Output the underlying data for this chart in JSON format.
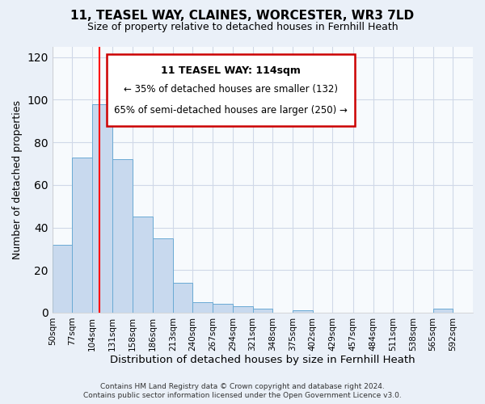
{
  "title": "11, TEASEL WAY, CLAINES, WORCESTER, WR3 7LD",
  "subtitle": "Size of property relative to detached houses in Fernhill Heath",
  "xlabel": "Distribution of detached houses by size in Fernhill Heath",
  "ylabel": "Number of detached properties",
  "bin_labels": [
    "50sqm",
    "77sqm",
    "104sqm",
    "131sqm",
    "158sqm",
    "186sqm",
    "213sqm",
    "240sqm",
    "267sqm",
    "294sqm",
    "321sqm",
    "348sqm",
    "375sqm",
    "402sqm",
    "429sqm",
    "457sqm",
    "484sqm",
    "511sqm",
    "538sqm",
    "565sqm",
    "592sqm"
  ],
  "bin_edges": [
    50,
    77,
    104,
    131,
    158,
    186,
    213,
    240,
    267,
    294,
    321,
    348,
    375,
    402,
    429,
    457,
    484,
    511,
    538,
    565,
    592
  ],
  "bar_heights": [
    32,
    73,
    98,
    72,
    45,
    35,
    14,
    5,
    4,
    3,
    2,
    0,
    1,
    0,
    0,
    0,
    0,
    0,
    0,
    2,
    0
  ],
  "bar_color": "#c8d9ee",
  "bar_edge_color": "#6aaad4",
  "red_line_x": 114,
  "ylim": [
    0,
    125
  ],
  "yticks": [
    0,
    20,
    40,
    60,
    80,
    100,
    120
  ],
  "annotation_title": "11 TEASEL WAY: 114sqm",
  "annotation_line1": "← 35% of detached houses are smaller (132)",
  "annotation_line2": "65% of semi-detached houses are larger (250) →",
  "annotation_box_color": "#ffffff",
  "annotation_box_edge_color": "#cc0000",
  "footer_line1": "Contains HM Land Registry data © Crown copyright and database right 2024.",
  "footer_line2": "Contains public sector information licensed under the Open Government Licence v3.0.",
  "bg_color": "#eaf0f8",
  "plot_bg_color": "#f7fafd",
  "grid_color": "#d0d8e8"
}
